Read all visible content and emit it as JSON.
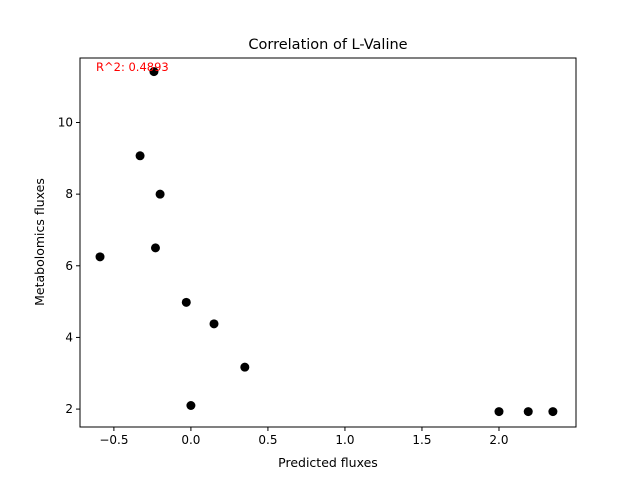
{
  "chart_data": {
    "type": "scatter",
    "title": "Correlation of L-Valine",
    "xlabel": "Predicted fluxes",
    "ylabel": "Metabolomics fluxes",
    "xlim": [
      -0.72,
      2.5
    ],
    "ylim": [
      1.5,
      11.8
    ],
    "xticks": [
      -0.5,
      0.0,
      0.5,
      1.0,
      1.5,
      2.0
    ],
    "xtick_labels": [
      "−0.5",
      "0.0",
      "0.5",
      "1.0",
      "1.5",
      "2.0"
    ],
    "yticks": [
      2,
      4,
      6,
      8,
      10
    ],
    "ytick_labels": [
      "2",
      "4",
      "6",
      "8",
      "10"
    ],
    "grid": false,
    "annotation": {
      "text": "R^2: 0.4893",
      "color": "#ff0000"
    },
    "marker_color": "#000000",
    "points": [
      {
        "x": -0.24,
        "y": 11.42
      },
      {
        "x": -0.33,
        "y": 9.07
      },
      {
        "x": -0.2,
        "y": 8.0
      },
      {
        "x": -0.23,
        "y": 6.5
      },
      {
        "x": -0.59,
        "y": 6.25
      },
      {
        "x": -0.03,
        "y": 4.98
      },
      {
        "x": 0.15,
        "y": 4.38
      },
      {
        "x": 0.35,
        "y": 3.17
      },
      {
        "x": 0.0,
        "y": 2.1
      },
      {
        "x": 2.0,
        "y": 1.93
      },
      {
        "x": 2.19,
        "y": 1.93
      },
      {
        "x": 2.35,
        "y": 1.93
      }
    ]
  }
}
